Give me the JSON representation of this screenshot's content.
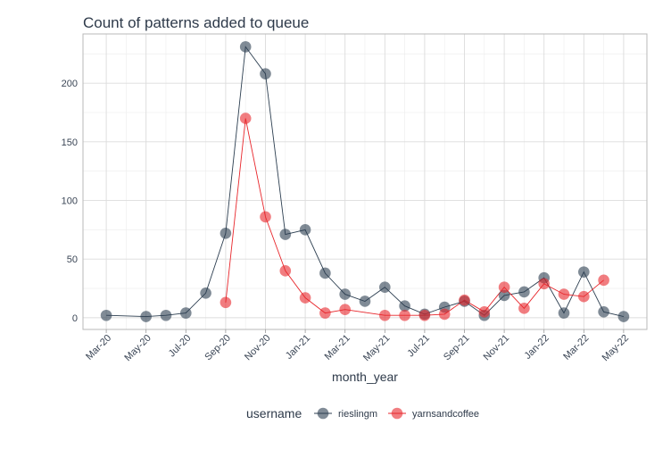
{
  "chart_data": {
    "type": "line",
    "title": "Count of patterns added to queue",
    "xlabel": "month_year",
    "ylabel": "",
    "ylim": [
      -10,
      242
    ],
    "y_ticks": [
      0,
      50,
      100,
      150,
      200
    ],
    "x_ticks": [
      "Mar-20",
      "May-20",
      "Jul-20",
      "Sep-20",
      "Nov-20",
      "Jan-21",
      "Mar-21",
      "May-21",
      "Jul-21",
      "Sep-21",
      "Nov-21",
      "Jan-22",
      "Mar-22",
      "May-22"
    ],
    "grid": true,
    "legend_title": "username",
    "legend_position": "bottom",
    "series": [
      {
        "name": "rieslingm",
        "color": "#2c3e50",
        "x": [
          "Mar-20",
          "May-20",
          "Jun-20",
          "Jul-20",
          "Aug-20",
          "Sep-20",
          "Oct-20",
          "Nov-20",
          "Dec-20",
          "Jan-21",
          "Feb-21",
          "Mar-21",
          "Apr-21",
          "May-21",
          "Jun-21",
          "Jul-21",
          "Aug-21",
          "Sep-21",
          "Oct-21",
          "Nov-21",
          "Dec-21",
          "Jan-22",
          "Feb-22",
          "Mar-22",
          "Apr-22",
          "May-22"
        ],
        "values": [
          2,
          1,
          2,
          4,
          21,
          72,
          231,
          208,
          71,
          75,
          38,
          20,
          14,
          26,
          10,
          3,
          9,
          14,
          2,
          19,
          22,
          34,
          4,
          39,
          5,
          1
        ]
      },
      {
        "name": "yarnsandcoffee",
        "color": "#e8262b",
        "x": [
          "Sep-20",
          "Oct-20",
          "Nov-20",
          "Dec-20",
          "Jan-21",
          "Feb-21",
          "Mar-21",
          "May-21",
          "Jun-21",
          "Jul-21",
          "Aug-21",
          "Sep-21",
          "Oct-21",
          "Nov-21",
          "Dec-21",
          "Jan-22",
          "Feb-22",
          "Mar-22",
          "Apr-22"
        ],
        "values": [
          13,
          170,
          86,
          40,
          17,
          4,
          7,
          2,
          2,
          2,
          3,
          15,
          5,
          26,
          8,
          29,
          20,
          18,
          32
        ]
      }
    ]
  }
}
